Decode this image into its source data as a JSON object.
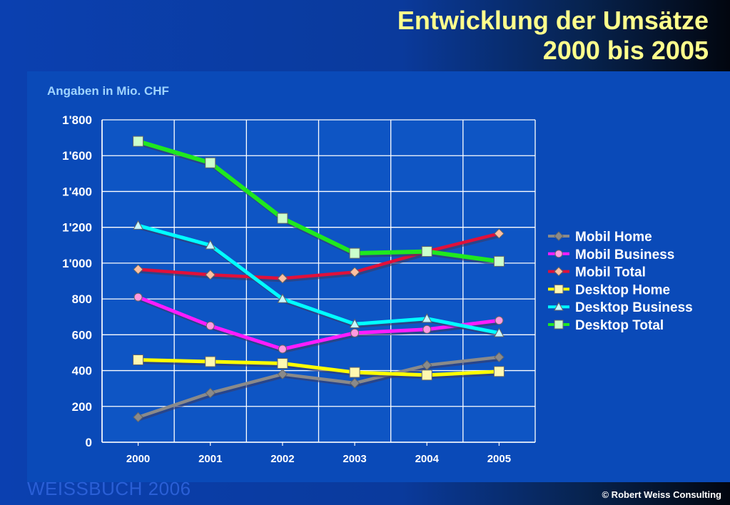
{
  "slide": {
    "title_line1": "Entwicklung der Umsätze",
    "title_line2": "2000 bis 2005",
    "footer_left": "WEISSBUCH  2006",
    "footer_right": "© Robert Weiss Consulting"
  },
  "chart_data": {
    "type": "line",
    "subtitle": "Angaben in Mio. CHF",
    "categories": [
      "2000",
      "2001",
      "2002",
      "2003",
      "2004",
      "2005"
    ],
    "ylim": [
      0,
      1800
    ],
    "yticks": [
      0,
      200,
      400,
      600,
      800,
      1000,
      1200,
      1400,
      1600,
      1800
    ],
    "ytick_labels": [
      "0",
      "200",
      "400",
      "600",
      "800",
      "1'000",
      "1'200",
      "1'400",
      "1'600",
      "1'800"
    ],
    "grid": true,
    "legend_position": "right",
    "series": [
      {
        "name": "Mobil Home",
        "values": [
          140,
          275,
          380,
          330,
          430,
          475
        ],
        "color": "#8a8a8a",
        "marker": "diamond",
        "show_line": true
      },
      {
        "name": "Mobil Business",
        "values": [
          810,
          650,
          520,
          610,
          630,
          680
        ],
        "color": "#ff1cff",
        "marker": "circle",
        "marker_color": "#ff9adf",
        "show_line": true
      },
      {
        "name": "Mobil Total",
        "values": [
          965,
          935,
          915,
          950,
          1065,
          1165
        ],
        "color": "#e0103a",
        "marker": "diamond",
        "marker_color": "#ffc0a0",
        "show_line": true
      },
      {
        "name": "Desktop Home",
        "values": [
          460,
          450,
          440,
          390,
          375,
          395
        ],
        "color": "#ffff00",
        "marker": "square",
        "marker_color": "#fff8b0",
        "show_line": true
      },
      {
        "name": "Desktop Business",
        "values": [
          1210,
          1100,
          800,
          660,
          690,
          610
        ],
        "color": "#00ffff",
        "marker": "triangle",
        "marker_color": "#c8f6ff",
        "show_line": true
      },
      {
        "name": "Desktop Total",
        "values": [
          1680,
          1560,
          1250,
          1055,
          1065,
          1010
        ],
        "color": "#1fe81f",
        "marker": "square",
        "marker_color": "#ccffcc",
        "show_line": true
      }
    ]
  }
}
